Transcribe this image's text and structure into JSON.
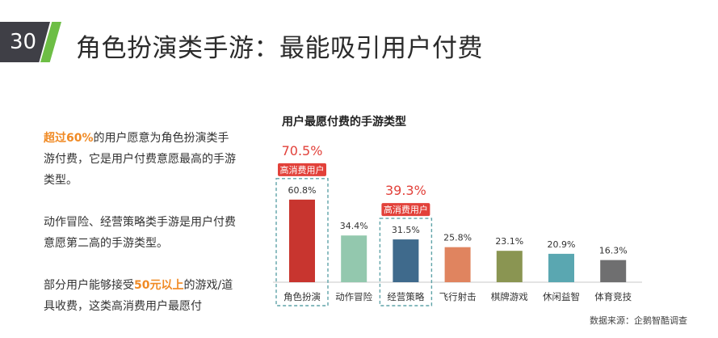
{
  "header": {
    "page_number": "30",
    "title": "角色扮演类手游：最能吸引用户付费"
  },
  "text": {
    "p1_highlight": "超过60%",
    "p1_rest": "的用户愿意为角色扮演类手游付费，它是用户付费意愿最高的手游类型。",
    "p2": "动作冒险、经营策略类手游是用户付费意愿第二高的手游类型。",
    "p3_pre": "部分用户能够接受",
    "p3_highlight": "50元以上",
    "p3_rest": "的游戏/道具收费，这类高消费用户最愿付"
  },
  "source": "数据来源：企鹅智酷调查",
  "colors": {
    "accent_green": "#6dbe45",
    "header_dark": "#3f3f46",
    "highlight_orange": "#f08a24",
    "callout_red": "#e2413a",
    "dash_box": "#5fa3a8"
  },
  "chart_data": {
    "type": "bar",
    "title": "用户最愿付费的手游类型",
    "categories": [
      "角色扮演",
      "动作冒险",
      "经营策略",
      "飞行射击",
      "棋牌游戏",
      "休闲益智",
      "体育竞技"
    ],
    "values": [
      60.8,
      34.4,
      31.5,
      25.8,
      23.1,
      20.9,
      16.3
    ],
    "value_labels": [
      "60.8%",
      "34.4%",
      "31.5%",
      "25.8%",
      "23.1%",
      "20.9%",
      "16.3%"
    ],
    "bar_colors": [
      "#c8352f",
      "#93c8ae",
      "#3f6a8c",
      "#e0845f",
      "#8a9552",
      "#5aa7b1",
      "#6f6f70"
    ],
    "ylim": [
      0,
      70
    ],
    "grid": false,
    "callouts": [
      {
        "category": "角色扮演",
        "total": "70.5%",
        "badge": "高消费用户"
      },
      {
        "category": "经营策略",
        "total": "39.3%",
        "badge": "高消费用户"
      }
    ]
  }
}
